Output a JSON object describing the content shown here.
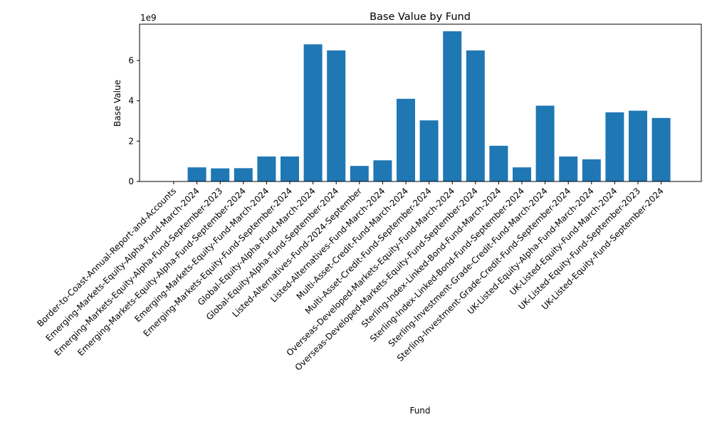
{
  "chart_data": {
    "type": "bar",
    "title": "Base Value by Fund",
    "xlabel": "Fund",
    "ylabel": "Base Value",
    "y_multiplier": "1e9",
    "ylim": [
      0,
      7.8
    ],
    "yticks": [
      0,
      2,
      4,
      6
    ],
    "ytick_labels": [
      "0",
      "2",
      "4",
      "6"
    ],
    "grid": false,
    "bar_color": "#1f77b4",
    "categories": [
      "Border-to-Coast-Annual-Report-and-Accounts",
      "Emerging-Markets-Equity-Alpha-Fund-March-2024",
      "Emerging-Markets-Equity-Alpha-Fund-September-2023",
      "Emerging-Markets-Equity-Alpha-Fund-September-2024",
      "Emerging-Markets-Equity-Fund-March-2024",
      "Emerging-Markets-Equity-Fund-September-2024",
      "Global-Equity-Alpha-Fund-March-2024",
      "Global-Equity-Alpha-Fund-September-2024",
      "Listed-Alternatives-Fund-2024-September",
      "Listed-Alternatives-Fund-March-2024",
      "Multi-Asset-Credit-Fund-March-2024",
      "Multi-Asset-Credit-Fund-September-2024",
      "Overseas-Developed-Markets-Equity-Fund-March-2024",
      "Overseas-Developed-Markets-Equity-Fund-September-2024",
      "Sterling-Index-Linked-Bond-Fund-March-2024",
      "Sterling-Index-Linked-Bond-Fund-September-2024",
      "Sterling-Investment-Grade-Credit-Fund-March-2024",
      "Sterling-Investment-Grade-Credit-Fund-September-2024",
      "UK-Listed-Equity-Alpha-Fund-March-2024",
      "UK-Listed-Equity-Fund-March-2024",
      "UK-Listed-Equity-Fund-September-2023",
      "UK-Listed-Equity-Fund-September-2024"
    ],
    "values": [
      0,
      0.7,
      0.65,
      0.66,
      1.24,
      1.24,
      6.8,
      6.5,
      0.77,
      1.05,
      4.1,
      3.03,
      7.45,
      6.5,
      1.77,
      0.7,
      3.76,
      1.24,
      1.1,
      3.43,
      3.51,
      3.15
    ]
  }
}
